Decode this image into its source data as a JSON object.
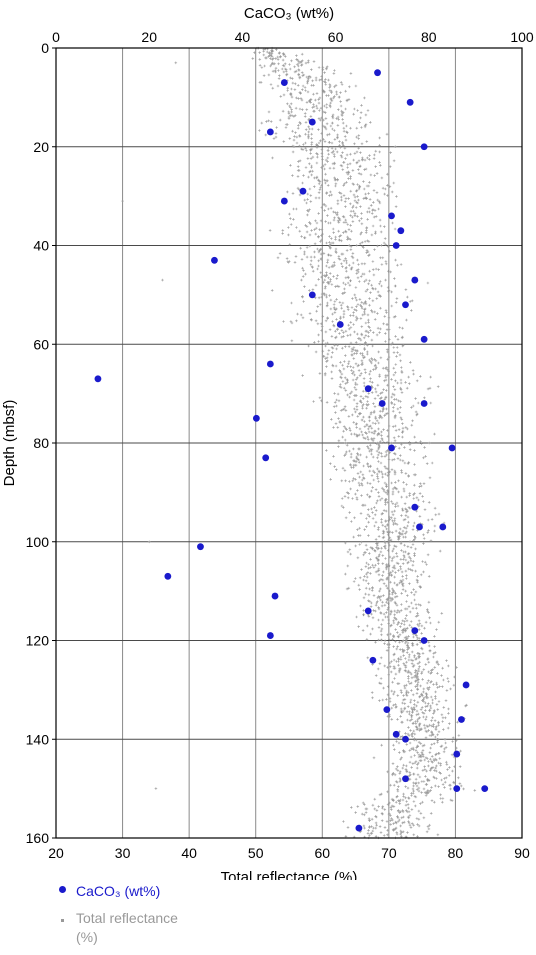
{
  "chart_data": {
    "type": "scatter",
    "x_top_label": "CaCO₃ (wt%)",
    "x_bottom_label": "Total reflectance (%)",
    "ylabel": "Depth (mbsf)",
    "x_top_lim": [
      0,
      100
    ],
    "x_top_ticks": [
      "0",
      "20",
      "40",
      "60",
      "80",
      "100"
    ],
    "x_bottom_lim": [
      20,
      90
    ],
    "x_bottom_ticks": [
      "20",
      "30",
      "40",
      "50",
      "60",
      "70",
      "80",
      "90"
    ],
    "ylim": [
      0,
      160
    ],
    "y_ticks": [
      "0",
      "20",
      "40",
      "60",
      "80",
      "100",
      "120",
      "140",
      "160"
    ],
    "y_inverted": true,
    "grid": true,
    "legend_placement": "bottom-left",
    "series": [
      {
        "name": "CaCO₃ (wt%)",
        "axis": "top",
        "color": "#1a1acc",
        "marker": "dot",
        "points": [
          [
            49,
            7
          ],
          [
            69,
            5
          ],
          [
            76,
            11
          ],
          [
            55,
            15
          ],
          [
            46,
            17
          ],
          [
            79,
            20
          ],
          [
            53,
            29
          ],
          [
            49,
            31
          ],
          [
            72,
            34
          ],
          [
            74,
            37
          ],
          [
            73,
            40
          ],
          [
            34,
            43
          ],
          [
            77,
            47
          ],
          [
            55,
            50
          ],
          [
            75,
            52
          ],
          [
            61,
            56
          ],
          [
            79,
            59
          ],
          [
            46,
            64
          ],
          [
            9,
            67
          ],
          [
            67,
            69
          ],
          [
            79,
            72
          ],
          [
            70,
            72
          ],
          [
            43,
            75
          ],
          [
            45,
            83
          ],
          [
            72,
            81
          ],
          [
            85,
            81
          ],
          [
            77,
            93
          ],
          [
            83,
            97
          ],
          [
            78,
            97
          ],
          [
            31,
            101
          ],
          [
            24,
            107
          ],
          [
            47,
            111
          ],
          [
            67,
            114
          ],
          [
            77,
            118
          ],
          [
            46,
            119
          ],
          [
            79,
            120
          ],
          [
            68,
            124
          ],
          [
            88,
            129
          ],
          [
            71,
            134
          ],
          [
            87,
            136
          ],
          [
            73,
            139
          ],
          [
            75,
            140
          ],
          [
            86,
            143
          ],
          [
            86,
            150
          ],
          [
            92,
            150
          ],
          [
            75,
            148
          ],
          [
            65,
            158
          ]
        ]
      },
      {
        "name": "Total reflectance (%)",
        "axis": "bottom",
        "color": "#999999",
        "marker": "plus",
        "profile": [
          [
            0,
            48,
            55
          ],
          [
            5,
            49,
            66
          ],
          [
            10,
            50,
            69
          ],
          [
            15,
            48,
            71
          ],
          [
            20,
            50,
            74
          ],
          [
            25,
            51,
            75
          ],
          [
            30,
            50,
            76
          ],
          [
            35,
            50,
            75
          ],
          [
            40,
            50,
            74
          ],
          [
            45,
            51,
            76
          ],
          [
            50,
            51,
            77
          ],
          [
            55,
            52,
            77
          ],
          [
            60,
            53,
            78
          ],
          [
            65,
            55,
            79
          ],
          [
            70,
            56,
            80
          ],
          [
            75,
            57,
            79
          ],
          [
            80,
            58,
            79
          ],
          [
            85,
            58,
            78
          ],
          [
            90,
            59,
            80
          ],
          [
            95,
            60,
            81
          ],
          [
            100,
            61,
            79
          ],
          [
            105,
            62,
            78
          ],
          [
            110,
            62,
            78
          ],
          [
            115,
            63,
            79
          ],
          [
            120,
            64,
            80
          ],
          [
            125,
            65,
            82
          ],
          [
            130,
            66,
            83
          ],
          [
            135,
            67,
            83
          ],
          [
            140,
            68,
            83
          ],
          [
            145,
            67,
            84
          ],
          [
            150,
            66,
            84
          ],
          [
            155,
            60,
            80
          ],
          [
            160,
            60,
            79
          ]
        ],
        "sparse_outliers": [
          [
            38,
            3
          ],
          [
            36,
            47
          ],
          [
            30,
            31
          ],
          [
            34,
            100
          ],
          [
            35,
            150
          ]
        ]
      }
    ]
  }
}
